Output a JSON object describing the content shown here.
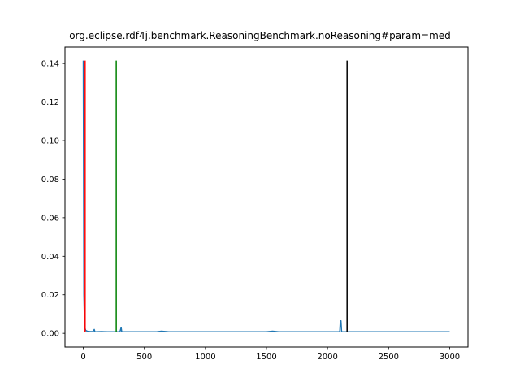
{
  "chart_data": {
    "type": "line",
    "title": "org.eclipse.rdf4j.benchmark.ReasoningBenchmark.noReasoning#param=med",
    "xlabel": "",
    "ylabel": "",
    "xlim": [
      -150,
      3150
    ],
    "ylim": [
      -0.0071,
      0.1485
    ],
    "x_ticks": [
      0,
      500,
      1000,
      1500,
      2000,
      2500,
      3000
    ],
    "y_ticks": [
      0.0,
      0.02,
      0.04,
      0.06,
      0.08,
      0.1,
      0.12,
      0.14
    ],
    "x_tick_labels": [
      "0",
      "500",
      "1000",
      "1500",
      "2000",
      "2500",
      "3000"
    ],
    "y_tick_labels": [
      "0.00",
      "0.02",
      "0.04",
      "0.06",
      "0.08",
      "0.10",
      "0.12",
      "0.14"
    ],
    "grid": false,
    "series": [
      {
        "color": "#1f77b4",
        "x": [
          0,
          5,
          10,
          15,
          20,
          30,
          40,
          60,
          80,
          90,
          95,
          100,
          150,
          200,
          250,
          300,
          310,
          315,
          320,
          400,
          500,
          600,
          640,
          700,
          800,
          900,
          1000,
          1100,
          1200,
          1300,
          1400,
          1500,
          1550,
          1600,
          1700,
          1800,
          1900,
          2000,
          2100,
          2105,
          2110,
          2115,
          2200,
          2300,
          2400,
          2500,
          2600,
          2700,
          2800,
          2900,
          3000
        ],
        "y": [
          0.1415,
          0.02,
          0.005,
          0.0025,
          0.0015,
          0.0012,
          0.001,
          0.0009,
          0.0009,
          0.002,
          0.0009,
          0.0008,
          0.0009,
          0.0008,
          0.0008,
          0.0008,
          0.003,
          0.0008,
          0.0008,
          0.0008,
          0.0008,
          0.0008,
          0.0011,
          0.0008,
          0.0008,
          0.0008,
          0.0008,
          0.0008,
          0.0008,
          0.0008,
          0.0008,
          0.0008,
          0.0011,
          0.0008,
          0.0008,
          0.0008,
          0.0008,
          0.0008,
          0.0008,
          0.0065,
          0.0065,
          0.0008,
          0.0008,
          0.0008,
          0.0008,
          0.0008,
          0.0008,
          0.0008,
          0.0008,
          0.0008,
          0.0008
        ]
      }
    ],
    "vlines": [
      {
        "x": 15,
        "color": "#ff0000"
      },
      {
        "x": 270,
        "color": "#008000"
      },
      {
        "x": 2160,
        "color": "#000000"
      }
    ],
    "vline_range": [
      0.0008,
      0.1415
    ]
  }
}
